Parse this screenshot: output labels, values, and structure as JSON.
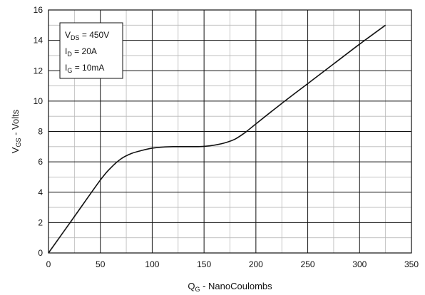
{
  "chart_data": {
    "type": "line",
    "title": "",
    "xlabel": "Q",
    "xlabel_sub": "G",
    "xlabel_rest": " - NanoCoulombs",
    "ylabel": "V",
    "ylabel_sub": "GS",
    "ylabel_rest": " - Volts",
    "xlim": [
      0,
      350
    ],
    "ylim": [
      0,
      16
    ],
    "x_major_ticks": [
      0,
      50,
      100,
      150,
      200,
      250,
      300,
      350
    ],
    "x_minor_step": 25,
    "y_major_ticks": [
      0,
      2,
      4,
      6,
      8,
      10,
      12,
      14,
      16
    ],
    "y_minor_step": 1,
    "grid": true,
    "legend_position": "top-left",
    "annotations": [
      {
        "main": "V",
        "sub": "DS",
        "rest": " = 450V"
      },
      {
        "main": "I",
        "sub": "D",
        "rest": " = 20A"
      },
      {
        "main": "I",
        "sub": "G",
        "rest": " = 10mA"
      }
    ],
    "series": [
      {
        "color": "#111111",
        "points": [
          [
            0,
            0
          ],
          [
            25,
            2.4
          ],
          [
            50,
            4.8
          ],
          [
            60,
            5.6
          ],
          [
            70,
            6.2
          ],
          [
            80,
            6.55
          ],
          [
            90,
            6.75
          ],
          [
            100,
            6.9
          ],
          [
            110,
            6.97
          ],
          [
            120,
            7.0
          ],
          [
            130,
            7.0
          ],
          [
            140,
            7.0
          ],
          [
            150,
            7.02
          ],
          [
            160,
            7.1
          ],
          [
            170,
            7.25
          ],
          [
            180,
            7.5
          ],
          [
            190,
            7.95
          ],
          [
            200,
            8.5
          ],
          [
            225,
            9.85
          ],
          [
            250,
            11.15
          ],
          [
            275,
            12.45
          ],
          [
            300,
            13.75
          ],
          [
            325,
            15.0
          ]
        ]
      }
    ]
  }
}
